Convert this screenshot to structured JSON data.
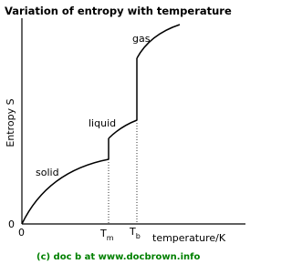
{
  "title": "Variation of entropy with temperature",
  "y_axis_label": "Entropy S",
  "x_axis_label": "temperature/K",
  "origin_labels": [
    "0",
    "0"
  ],
  "x_ticks": [
    {
      "main": "T",
      "sub": "m"
    },
    {
      "main": "T",
      "sub": "b"
    }
  ],
  "phases": [
    "solid",
    "liquid",
    "gas"
  ],
  "credit": "(c) doc b at www.docbrown.info"
}
